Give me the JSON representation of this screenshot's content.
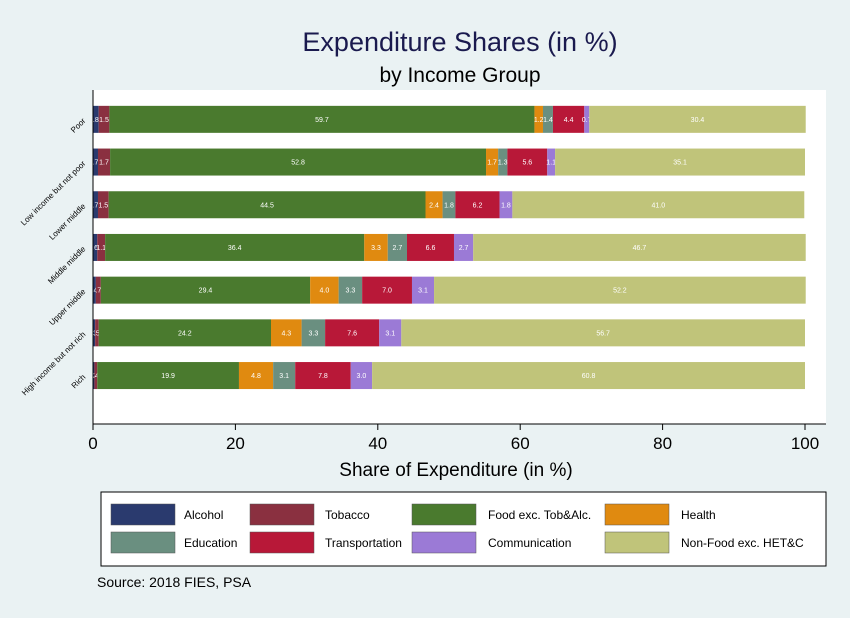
{
  "chart_data": {
    "type": "bar",
    "orientation": "horizontal",
    "stacked": true,
    "title": "Expenditure Shares (in %)",
    "subtitle": "by Income Group",
    "xlabel": "Share of Expenditure (in %)",
    "xlim": [
      0,
      100
    ],
    "xticks": [
      "0",
      "20",
      "40",
      "60",
      "80",
      "100"
    ],
    "grid": false,
    "legend_position": "bottom",
    "categories": [
      "Poor",
      "Low income but not poor",
      "Lower middle",
      "Middle middle",
      "Upper middle",
      "High income but not rich",
      "Rich"
    ],
    "series": [
      {
        "name": "Alcohol",
        "color": "#2a3a6e",
        "values": [
          0.8,
          0.7,
          0.7,
          0.6,
          0.4,
          0.3,
          0.2
        ],
        "labels": [
          ".8",
          ".7",
          ".7",
          ".6",
          ".4",
          ".3",
          ".2"
        ]
      },
      {
        "name": "Tobacco",
        "color": "#8a3040",
        "values": [
          1.5,
          1.7,
          1.5,
          1.1,
          0.7,
          0.5,
          0.4
        ],
        "labels": [
          "1.5",
          "1.7",
          "1.5",
          "1.1",
          ".7",
          ".5",
          ".4"
        ]
      },
      {
        "name": "Food exc. Tob&Alc.",
        "color": "#4a7a2e",
        "values": [
          59.7,
          52.8,
          44.5,
          36.4,
          29.4,
          24.2,
          19.9
        ],
        "labels": [
          "59.7",
          "52.8",
          "44.5",
          "36.4",
          "29.4",
          "24.2",
          "19.9"
        ]
      },
      {
        "name": "Health",
        "color": "#e08a10",
        "values": [
          1.2,
          1.7,
          2.4,
          3.3,
          4.0,
          4.3,
          4.8
        ],
        "labels": [
          "1.2",
          "1.7",
          "2.4",
          "3.3",
          "4.0",
          "4.3",
          "4.8"
        ]
      },
      {
        "name": "Education",
        "color": "#6a8f80",
        "values": [
          1.4,
          1.3,
          1.8,
          2.7,
          3.3,
          3.3,
          3.1
        ],
        "labels": [
          "1.4",
          "1.3",
          "1.8",
          "2.7",
          "3.3",
          "3.3",
          "3.1"
        ]
      },
      {
        "name": "Transportation",
        "color": "#b81838",
        "values": [
          4.4,
          5.6,
          6.2,
          6.6,
          7.0,
          7.6,
          7.8
        ],
        "labels": [
          "4.4",
          "5.6",
          "6.2",
          "6.6",
          "7.0",
          "7.6",
          "7.8"
        ]
      },
      {
        "name": "Communication",
        "color": "#9b7ad6",
        "values": [
          0.7,
          1.1,
          1.8,
          2.7,
          3.1,
          3.1,
          3.0
        ],
        "labels": [
          "0.7",
          "1.1",
          "1.8",
          "2.7",
          "3.1",
          "3.1",
          "3.0"
        ]
      },
      {
        "name": "Non-Food exc. HET&C",
        "color": "#c0c47a",
        "values": [
          30.4,
          35.1,
          41.0,
          46.7,
          52.2,
          56.7,
          60.8
        ],
        "labels": [
          "30.4",
          "35.1",
          "41.0",
          "46.7",
          "52.2",
          "56.7",
          "60.8"
        ]
      }
    ]
  },
  "source_note": "Source:  2018 FIES, PSA"
}
